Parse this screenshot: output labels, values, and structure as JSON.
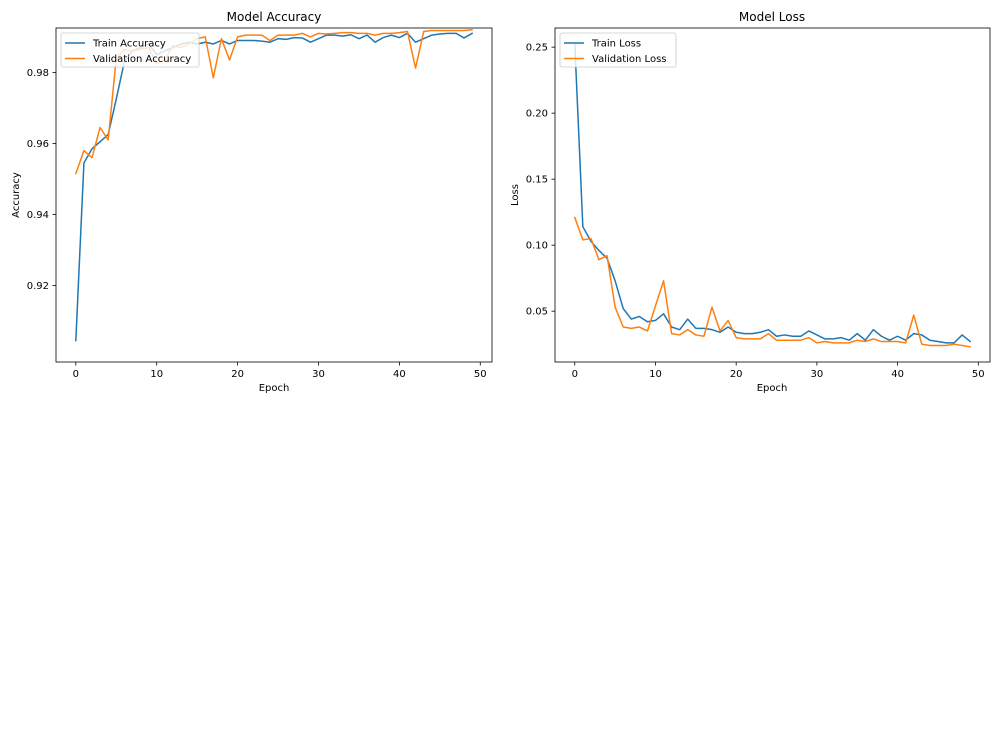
{
  "chart_data": [
    {
      "type": "line",
      "title": "Model Accuracy",
      "xlabel": "Epoch",
      "ylabel": "Accuracy",
      "xlim": [
        -2.45,
        51.45
      ],
      "ylim": [
        0.8985,
        0.9925
      ],
      "xticks": [
        0,
        10,
        20,
        30,
        40,
        50
      ],
      "yticks": [
        0.92,
        0.94,
        0.96,
        0.98
      ],
      "xtick_labels": [
        "0",
        "10",
        "20",
        "30",
        "40",
        "50"
      ],
      "ytick_labels": [
        "0.92",
        "0.94",
        "0.96",
        "0.98"
      ],
      "grid": false,
      "legend_position": "top-left",
      "x": [
        0,
        1,
        2,
        3,
        4,
        5,
        6,
        7,
        8,
        9,
        10,
        11,
        12,
        13,
        14,
        15,
        16,
        17,
        18,
        19,
        20,
        21,
        22,
        23,
        24,
        25,
        26,
        27,
        28,
        29,
        30,
        31,
        32,
        33,
        34,
        35,
        36,
        37,
        38,
        39,
        40,
        41,
        42,
        43,
        44,
        45,
        46,
        47,
        48,
        49
      ],
      "series": [
        {
          "name": "Train Accuracy",
          "color": "#1f77b4",
          "values": [
            0.9045,
            0.9545,
            0.9585,
            0.9605,
            0.9625,
            0.9725,
            0.983,
            0.986,
            0.987,
            0.988,
            0.985,
            0.986,
            0.987,
            0.988,
            0.9885,
            0.988,
            0.9885,
            0.988,
            0.989,
            0.988,
            0.989,
            0.989,
            0.989,
            0.9888,
            0.9885,
            0.9895,
            0.9893,
            0.9898,
            0.9897,
            0.9885,
            0.9895,
            0.9905,
            0.9905,
            0.9902,
            0.9906,
            0.9895,
            0.9905,
            0.9885,
            0.9898,
            0.9905,
            0.9898,
            0.991,
            0.9885,
            0.9895,
            0.9905,
            0.9908,
            0.991,
            0.991,
            0.9897,
            0.991
          ]
        },
        {
          "name": "Validation Accuracy",
          "color": "#ff7f0e",
          "values": [
            0.9515,
            0.958,
            0.956,
            0.9645,
            0.961,
            0.984,
            0.9865,
            0.986,
            0.9865,
            0.987,
            0.9825,
            0.9835,
            0.9875,
            0.987,
            0.988,
            0.9895,
            0.99,
            0.9785,
            0.9895,
            0.9835,
            0.99,
            0.9905,
            0.9905,
            0.9905,
            0.989,
            0.9905,
            0.9905,
            0.9905,
            0.991,
            0.99,
            0.991,
            0.9908,
            0.991,
            0.9912,
            0.9912,
            0.991,
            0.991,
            0.9905,
            0.991,
            0.991,
            0.9912,
            0.9915,
            0.9812,
            0.9915,
            0.9918,
            0.9918,
            0.9918,
            0.9918,
            0.9918,
            0.992
          ]
        }
      ]
    },
    {
      "type": "line",
      "title": "Model Loss",
      "xlabel": "Epoch",
      "ylabel": "Loss",
      "xlim": [
        -2.45,
        51.45
      ],
      "ylim": [
        0.0115,
        0.2645
      ],
      "xticks": [
        0,
        10,
        20,
        30,
        40,
        50
      ],
      "yticks": [
        0.05,
        0.1,
        0.15,
        0.2,
        0.25
      ],
      "xtick_labels": [
        "0",
        "10",
        "20",
        "30",
        "40",
        "50"
      ],
      "ytick_labels": [
        "0.05",
        "0.10",
        "0.15",
        "0.20",
        "0.25"
      ],
      "grid": false,
      "legend_position": "top-left",
      "x": [
        0,
        1,
        2,
        3,
        4,
        5,
        6,
        7,
        8,
        9,
        10,
        11,
        12,
        13,
        14,
        15,
        16,
        17,
        18,
        19,
        20,
        21,
        22,
        23,
        24,
        25,
        26,
        27,
        28,
        29,
        30,
        31,
        32,
        33,
        34,
        35,
        36,
        37,
        38,
        39,
        40,
        41,
        42,
        43,
        44,
        45,
        46,
        47,
        48,
        49
      ],
      "series": [
        {
          "name": "Train Loss",
          "color": "#1f77b4",
          "values": [
            0.253,
            0.114,
            0.103,
            0.096,
            0.09,
            0.073,
            0.052,
            0.044,
            0.046,
            0.042,
            0.043,
            0.048,
            0.038,
            0.036,
            0.044,
            0.037,
            0.037,
            0.036,
            0.034,
            0.038,
            0.034,
            0.033,
            0.033,
            0.034,
            0.036,
            0.031,
            0.032,
            0.031,
            0.031,
            0.035,
            0.032,
            0.029,
            0.029,
            0.03,
            0.028,
            0.033,
            0.028,
            0.036,
            0.031,
            0.028,
            0.031,
            0.028,
            0.033,
            0.032,
            0.028,
            0.027,
            0.026,
            0.026,
            0.032,
            0.027
          ]
        },
        {
          "name": "Validation Loss",
          "color": "#ff7f0e",
          "values": [
            0.121,
            0.104,
            0.105,
            0.089,
            0.092,
            0.053,
            0.038,
            0.037,
            0.038,
            0.035,
            0.054,
            0.073,
            0.033,
            0.032,
            0.036,
            0.032,
            0.031,
            0.053,
            0.035,
            0.043,
            0.03,
            0.029,
            0.029,
            0.029,
            0.033,
            0.028,
            0.028,
            0.028,
            0.028,
            0.03,
            0.026,
            0.027,
            0.026,
            0.026,
            0.026,
            0.028,
            0.027,
            0.029,
            0.027,
            0.027,
            0.027,
            0.026,
            0.047,
            0.025,
            0.024,
            0.024,
            0.024,
            0.025,
            0.024,
            0.023
          ]
        }
      ]
    }
  ]
}
